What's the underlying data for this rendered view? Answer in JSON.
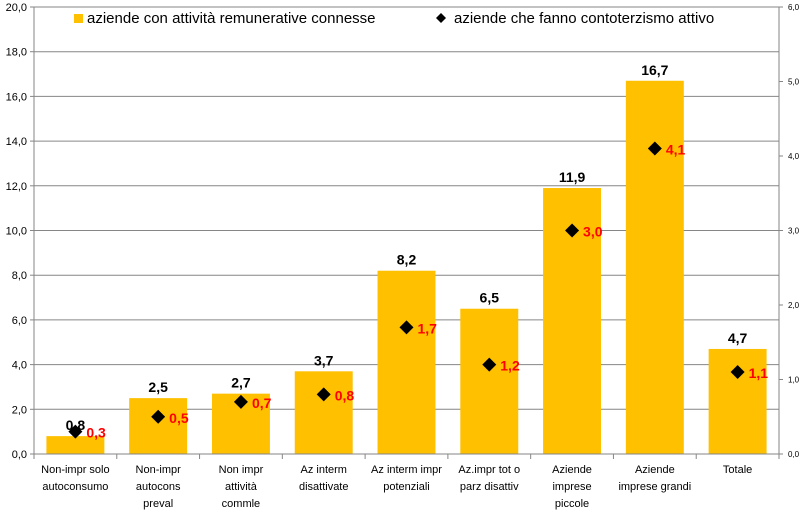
{
  "chart_data": {
    "type": "bar",
    "title": "",
    "categories": [
      [
        "Non-impr solo",
        "autoconsumo"
      ],
      [
        "Non-impr",
        "autocons",
        "preval"
      ],
      [
        "Non impr",
        "attività",
        "commle"
      ],
      [
        "Az interm",
        "disattivate"
      ],
      [
        "Az interm impr",
        "potenziali"
      ],
      [
        "Az.impr tot o",
        "parz disattiv"
      ],
      [
        "Aziende",
        "imprese",
        "piccole"
      ],
      [
        "Aziende",
        "imprese grandi"
      ],
      [
        "Totale"
      ]
    ],
    "series": [
      {
        "name": "aziende con attività remunerative connesse",
        "type": "bar",
        "axis": "left",
        "color": "#FFC000",
        "values": [
          0.8,
          2.5,
          2.7,
          3.7,
          8.2,
          6.5,
          11.9,
          16.7,
          4.7
        ],
        "labels": [
          "0,8",
          "2,5",
          "2,7",
          "3,7",
          "8,2",
          "6,5",
          "11,9",
          "16,7",
          "4,7"
        ],
        "label_color": "#000000"
      },
      {
        "name": "aziende che fanno contoterzismo attivo",
        "type": "scatter",
        "marker": "diamond",
        "axis": "right",
        "color": "#000000",
        "values": [
          0.3,
          0.5,
          0.7,
          0.8,
          1.7,
          1.2,
          3.0,
          4.1,
          1.1
        ],
        "labels": [
          "0,3",
          "0,5",
          "0,7",
          "0,8",
          "1,7",
          "1,2",
          "3,0",
          "4,1",
          "1,1"
        ],
        "label_color": "#FF0000"
      }
    ],
    "y_left": {
      "min": 0,
      "max": 20,
      "ticks": [
        "0,0",
        "2,0",
        "4,0",
        "6,0",
        "8,0",
        "10,0",
        "12,0",
        "14,0",
        "16,0",
        "18,0",
        "20,0"
      ]
    },
    "y_right": {
      "min": 0,
      "max": 6,
      "ticks": [
        "0,0",
        "1,0",
        "2,0",
        "3,0",
        "4,0",
        "5,0",
        "6,0"
      ]
    },
    "grid": true,
    "legend_position": "top"
  }
}
